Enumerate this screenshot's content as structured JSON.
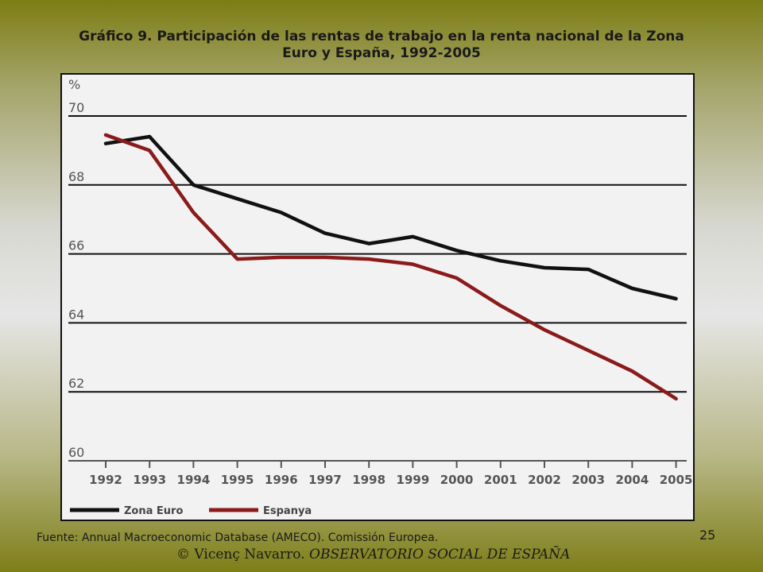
{
  "slide": {
    "title_line1": "Gráfico 9. Participación de las rentas de trabajo en la renta nacional de la Zona",
    "title_line2": "Euro y España, 1992-2005",
    "source": "Fuente: Annual Macroeconomic Database (AMECO). Comissión Europea.",
    "copyright_author": "© Vicenç Navarro. ",
    "copyright_observatory": "OBSERVATORIO SOCIAL DE ESPAÑA",
    "page_number": "25"
  },
  "chart_data": {
    "type": "line",
    "title": "",
    "xlabel": "",
    "ylabel": "%",
    "x": [
      "1992",
      "1993",
      "1994",
      "1995",
      "1996",
      "1997",
      "1998",
      "1999",
      "2000",
      "2001",
      "2002",
      "2003",
      "2004",
      "2005"
    ],
    "yticks": [
      "70",
      "68",
      "66",
      "64",
      "62",
      "60"
    ],
    "ylim": [
      60,
      70
    ],
    "grid": "horizontal",
    "legend_position": "bottom-left",
    "series": [
      {
        "name": "Zona Euro",
        "color": "#111111",
        "values": [
          69.2,
          69.4,
          68.0,
          67.6,
          67.2,
          66.6,
          66.3,
          66.5,
          66.1,
          65.8,
          65.6,
          65.55,
          65.0,
          64.7
        ]
      },
      {
        "name": "Espanya",
        "color": "#8b1a1a",
        "values": [
          69.45,
          69.0,
          67.2,
          65.85,
          65.9,
          65.9,
          65.85,
          65.7,
          65.3,
          64.5,
          63.8,
          63.2,
          62.6,
          61.8
        ]
      }
    ]
  }
}
